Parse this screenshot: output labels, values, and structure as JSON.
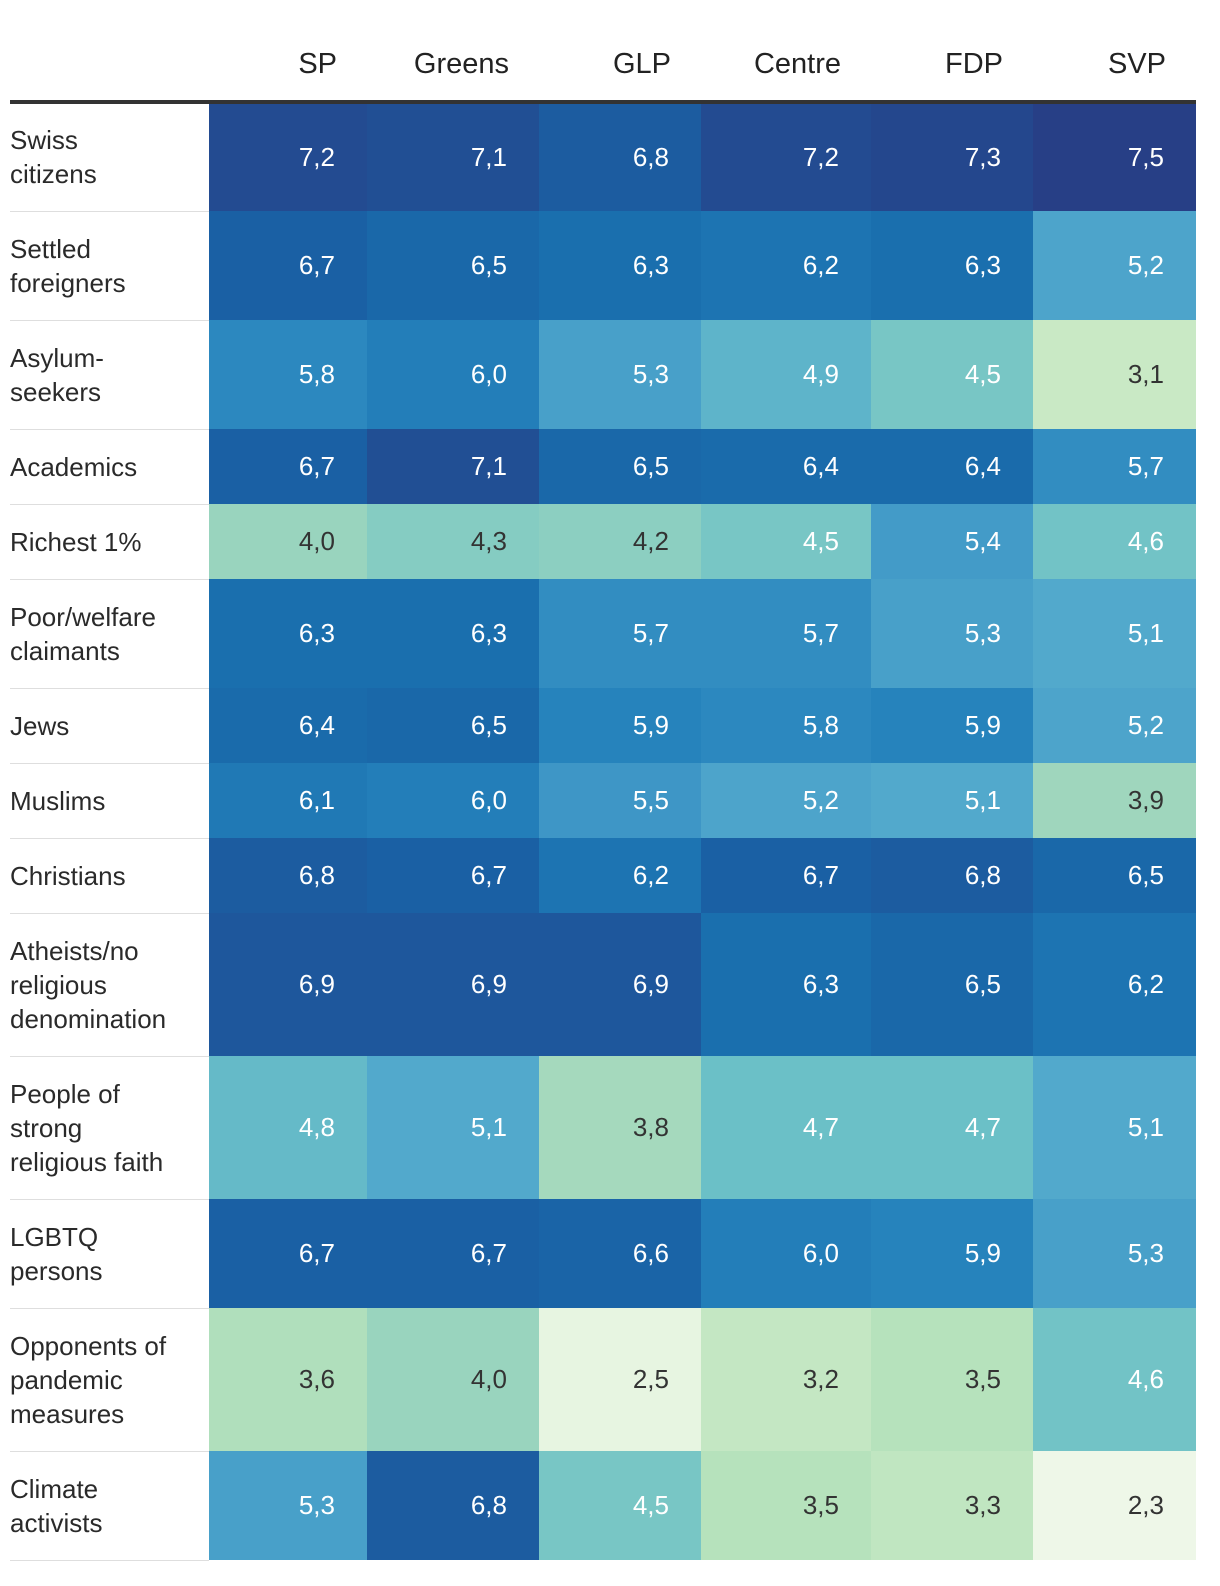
{
  "chart_data": {
    "type": "heatmap",
    "columns": [
      "SP",
      "Greens",
      "GLP",
      "Centre",
      "FDP",
      "SVP"
    ],
    "rows": [
      {
        "label": "Swiss citizens",
        "values": [
          "7,2",
          "7,1",
          "6,8",
          "7,2",
          "7,3",
          "7,5"
        ]
      },
      {
        "label": "Settled foreigners",
        "values": [
          "6,7",
          "6,5",
          "6,3",
          "6,2",
          "6,3",
          "5,2"
        ]
      },
      {
        "label": "Asylum-seekers",
        "values": [
          "5,8",
          "6,0",
          "5,3",
          "4,9",
          "4,5",
          "3,1"
        ]
      },
      {
        "label": "Academics",
        "values": [
          "6,7",
          "7,1",
          "6,5",
          "6,4",
          "6,4",
          "5,7"
        ]
      },
      {
        "label": "Richest 1%",
        "values": [
          "4,0",
          "4,3",
          "4,2",
          "4,5",
          "5,4",
          "4,6"
        ]
      },
      {
        "label": "Poor/welfare claimants",
        "values": [
          "6,3",
          "6,3",
          "5,7",
          "5,7",
          "5,3",
          "5,1"
        ]
      },
      {
        "label": "Jews",
        "values": [
          "6,4",
          "6,5",
          "5,9",
          "5,8",
          "5,9",
          "5,2"
        ]
      },
      {
        "label": "Muslims",
        "values": [
          "6,1",
          "6,0",
          "5,5",
          "5,2",
          "5,1",
          "3,9"
        ]
      },
      {
        "label": "Christians",
        "values": [
          "6,8",
          "6,7",
          "6,2",
          "6,7",
          "6,8",
          "6,5"
        ]
      },
      {
        "label": "Atheists/no religious denomination",
        "values": [
          "6,9",
          "6,9",
          "6,9",
          "6,3",
          "6,5",
          "6,2"
        ]
      },
      {
        "label": "People of strong religious faith",
        "values": [
          "4,8",
          "5,1",
          "3,8",
          "4,7",
          "4,7",
          "5,1"
        ]
      },
      {
        "label": "LGBTQ persons",
        "values": [
          "6,7",
          "6,7",
          "6,6",
          "6,0",
          "5,9",
          "5,3"
        ]
      },
      {
        "label": "Opponents of pandemic measures",
        "values": [
          "3,6",
          "4,0",
          "2,5",
          "3,2",
          "3,5",
          "4,6"
        ]
      },
      {
        "label": "Climate activists",
        "values": [
          "5,3",
          "6,8",
          "4,5",
          "3,5",
          "3,3",
          "2,3"
        ]
      }
    ],
    "color_scale": [
      "#eef7e8",
      "#e0f2da",
      "#c9e9c5",
      "#b6e2bc",
      "#9fd6bd",
      "#85ccc2",
      "#6bc0c7",
      "#52a9cc",
      "#3e96c6",
      "#2683bc",
      "#1a6fae",
      "#1a60a4",
      "#214f94",
      "#273f86"
    ]
  }
}
